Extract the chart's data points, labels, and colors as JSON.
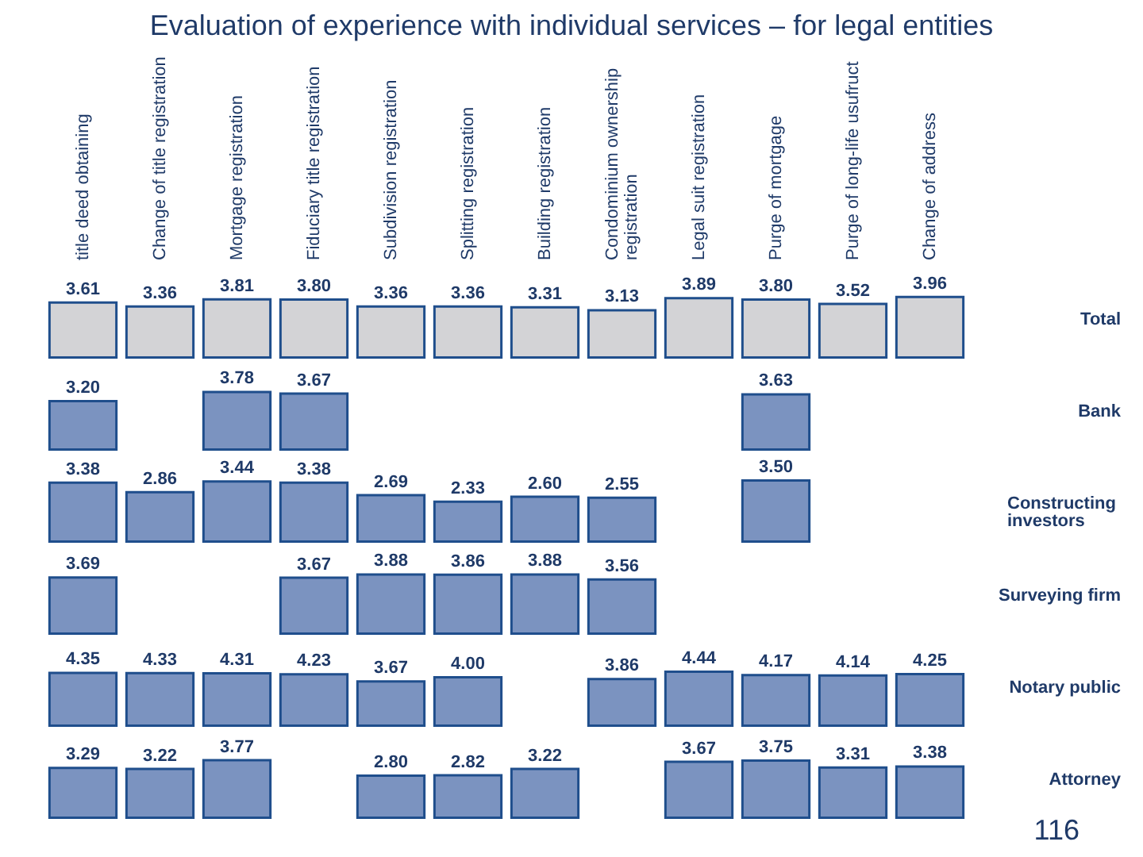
{
  "chart_data": [
    {
      "type": "bar",
      "title": "Evaluation of experience with individual services – for legal entities",
      "categories": [
        "title deed obtaining",
        "Change of title registration",
        "Mortgage registration",
        "Fiduciary title registration",
        "Subdivision registration",
        "Splitting registration",
        "Building registration",
        "Condominium ownership registration",
        "Legal suit registration",
        "Purge of mortgage",
        "Purge of long-life usufruct",
        "Change of address"
      ],
      "series": [
        {
          "name": "Total",
          "color": "#d3d3d6",
          "values": [
            3.61,
            3.36,
            3.81,
            3.8,
            3.36,
            3.36,
            3.31,
            3.13,
            3.89,
            3.8,
            3.52,
            3.96
          ],
          "value_labels": [
            "3.61",
            "3.36",
            "3.81",
            "3.80",
            "3.36",
            "3.36",
            "3.31",
            "3.13",
            "3.89",
            "3.80",
            "3.52",
            "3.96"
          ]
        }
      ],
      "tick_labels": "x"
    },
    {
      "type": "bar",
      "categories": [
        "title deed obtaining",
        "Change of title registration",
        "Mortgage registration",
        "Fiduciary title registration",
        "Subdivision registration",
        "Splitting registration",
        "Building registration",
        "Condominium ownership registration",
        "Legal suit registration",
        "Purge of mortgage",
        "Purge of long-life usufruct",
        "Change of address"
      ],
      "series": [
        {
          "name": "Bank",
          "color": "#7b93c0",
          "values": [
            3.2,
            null,
            3.78,
            3.67,
            null,
            null,
            null,
            null,
            null,
            3.63,
            null,
            null
          ],
          "value_labels": [
            "3.20",
            null,
            "3.78",
            "3.67",
            null,
            null,
            null,
            null,
            null,
            "3.63",
            null,
            null
          ]
        }
      ],
      "tick_labels": false
    },
    {
      "type": "bar",
      "categories": [
        "title deed obtaining",
        "Change of title registration",
        "Mortgage registration",
        "Fiduciary title registration",
        "Subdivision registration",
        "Splitting registration",
        "Building registration",
        "Condominium ownership registration",
        "Legal suit registration",
        "Purge of mortgage",
        "Purge of long-life usufruct",
        "Change of address"
      ],
      "series": [
        {
          "name": "Constructing investors",
          "color": "#7b93c0",
          "values": [
            3.38,
            2.86,
            3.44,
            3.38,
            2.69,
            2.33,
            2.6,
            2.55,
            null,
            3.5,
            null,
            null
          ],
          "value_labels": [
            "3.38",
            "2.86",
            "3.44",
            "3.38",
            "2.69",
            "2.33",
            "2.60",
            "2.55",
            null,
            "3.50",
            null,
            null
          ]
        }
      ],
      "tick_labels": false
    },
    {
      "type": "bar",
      "categories": [
        "title deed obtaining",
        "Change of title registration",
        "Mortgage registration",
        "Fiduciary title registration",
        "Subdivision registration",
        "Splitting registration",
        "Building registration",
        "Condominium ownership registration",
        "Legal suit registration",
        "Purge of mortgage",
        "Purge of long-life usufruct",
        "Change of address"
      ],
      "series": [
        {
          "name": "Surveying firm",
          "color": "#7b93c0",
          "values": [
            3.69,
            null,
            null,
            3.67,
            3.88,
            3.86,
            3.88,
            3.56,
            null,
            null,
            null,
            null
          ],
          "value_labels": [
            "3.69",
            null,
            null,
            "3.67",
            "3.88",
            "3.86",
            "3.88",
            "3.56",
            null,
            null,
            null,
            null
          ]
        }
      ],
      "tick_labels": false
    },
    {
      "type": "bar",
      "categories": [
        "title deed obtaining",
        "Change of title registration",
        "Mortgage registration",
        "Fiduciary title registration",
        "Subdivision registration",
        "Splitting registration",
        "Building registration",
        "Condominium ownership registration",
        "Legal suit registration",
        "Purge of mortgage",
        "Purge of long-life usufruct",
        "Change of address"
      ],
      "series": [
        {
          "name": "Notary public",
          "color": "#7b93c0",
          "values": [
            4.35,
            4.33,
            4.31,
            4.23,
            3.67,
            4.0,
            null,
            3.86,
            4.44,
            4.17,
            4.14,
            4.25
          ],
          "value_labels": [
            "4.35",
            "4.33",
            "4.31",
            "4.23",
            "3.67",
            "4.00",
            null,
            "3.86",
            "4.44",
            "4.17",
            "4.14",
            "4.25"
          ]
        }
      ],
      "tick_labels": false
    },
    {
      "type": "bar",
      "categories": [
        "title deed obtaining",
        "Change of title registration",
        "Mortgage registration",
        "Fiduciary title registration",
        "Subdivision registration",
        "Splitting registration",
        "Building registration",
        "Condominium ownership registration",
        "Legal suit registration",
        "Purge of mortgage",
        "Purge of long-life usufruct",
        "Change of address"
      ],
      "series": [
        {
          "name": "Attorney",
          "color": "#7b93c0",
          "values": [
            3.29,
            3.22,
            3.77,
            null,
            2.8,
            2.82,
            3.22,
            null,
            3.67,
            3.75,
            3.31,
            3.38
          ],
          "value_labels": [
            "3.29",
            "3.22",
            "3.77",
            null,
            "2.80",
            "2.82",
            "3.22",
            null,
            "3.67",
            "3.75",
            "3.31",
            "3.38"
          ]
        }
      ],
      "tick_labels": false,
      "annotations": [
        "116"
      ]
    }
  ]
}
